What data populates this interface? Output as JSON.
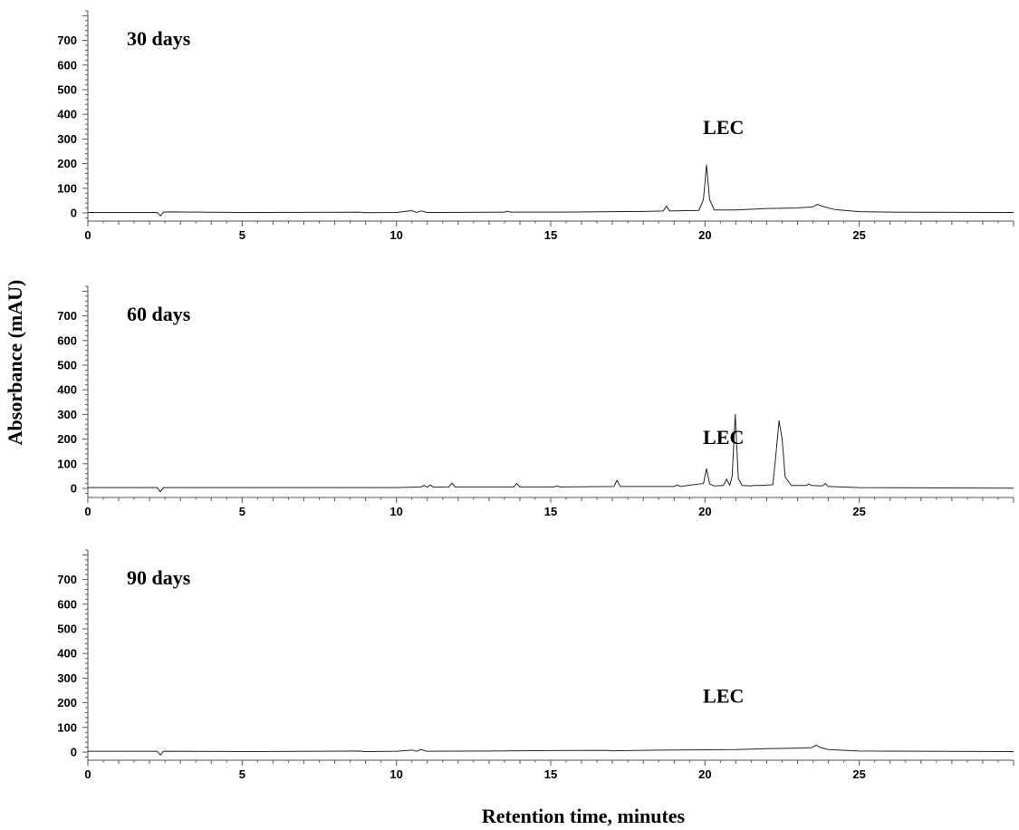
{
  "chart_data": {
    "type": "line",
    "ylabel": "Absorbance (mAU)",
    "xlabel": "Retention time, minutes",
    "xlim": [
      0,
      30
    ],
    "ylim": [
      -30,
      820
    ],
    "x_ticks": [
      0,
      5,
      10,
      15,
      20,
      25
    ],
    "y_ticks": [
      0,
      100,
      200,
      300,
      400,
      500,
      600,
      700
    ],
    "grid": false,
    "panels": [
      {
        "label": "30 days",
        "peak_label": "LEC",
        "peak_label_pos": [
          20.6,
          320
        ],
        "trace": [
          [
            0,
            2
          ],
          [
            2.25,
            2
          ],
          [
            2.35,
            -12
          ],
          [
            2.45,
            3
          ],
          [
            2.7,
            4
          ],
          [
            5,
            2
          ],
          [
            8.8,
            3
          ],
          [
            9,
            1
          ],
          [
            10,
            2
          ],
          [
            10.5,
            9
          ],
          [
            10.65,
            2
          ],
          [
            10.8,
            8
          ],
          [
            11,
            2
          ],
          [
            13.5,
            3
          ],
          [
            13.6,
            7
          ],
          [
            13.7,
            3
          ],
          [
            15,
            3
          ],
          [
            17,
            5
          ],
          [
            18,
            6
          ],
          [
            18.65,
            8
          ],
          [
            18.75,
            28
          ],
          [
            18.85,
            8
          ],
          [
            19.8,
            10
          ],
          [
            19.95,
            55
          ],
          [
            20.05,
            195
          ],
          [
            20.15,
            55
          ],
          [
            20.3,
            12
          ],
          [
            21,
            12
          ],
          [
            22,
            18
          ],
          [
            23,
            20
          ],
          [
            23.5,
            25
          ],
          [
            23.65,
            35
          ],
          [
            23.8,
            27
          ],
          [
            24.2,
            14
          ],
          [
            25,
            5
          ],
          [
            26,
            3
          ],
          [
            30,
            2
          ]
        ]
      },
      {
        "label": "60 days",
        "peak_label": "LEC",
        "peak_label_pos": [
          20.6,
          180
        ],
        "trace": [
          [
            0,
            3
          ],
          [
            2.25,
            3
          ],
          [
            2.35,
            -14
          ],
          [
            2.45,
            3
          ],
          [
            5,
            3
          ],
          [
            10,
            3
          ],
          [
            10.8,
            6
          ],
          [
            10.9,
            12
          ],
          [
            11,
            5
          ],
          [
            11.1,
            14
          ],
          [
            11.2,
            5
          ],
          [
            11.7,
            6
          ],
          [
            11.8,
            22
          ],
          [
            11.9,
            6
          ],
          [
            13.8,
            6
          ],
          [
            13.9,
            20
          ],
          [
            14,
            6
          ],
          [
            15.1,
            6
          ],
          [
            15.2,
            10
          ],
          [
            15.3,
            6
          ],
          [
            17.05,
            8
          ],
          [
            17.15,
            33
          ],
          [
            17.25,
            8
          ],
          [
            19,
            8
          ],
          [
            19.1,
            14
          ],
          [
            19.2,
            8
          ],
          [
            19.95,
            20
          ],
          [
            20.05,
            80
          ],
          [
            20.15,
            18
          ],
          [
            20.3,
            10
          ],
          [
            20.6,
            12
          ],
          [
            20.7,
            38
          ],
          [
            20.8,
            12
          ],
          [
            20.88,
            50
          ],
          [
            20.98,
            300
          ],
          [
            21.08,
            40
          ],
          [
            21.2,
            12
          ],
          [
            21.5,
            10
          ],
          [
            21.6,
            12
          ],
          [
            21.8,
            12
          ],
          [
            22.2,
            15
          ],
          [
            22.3,
            140
          ],
          [
            22.4,
            275
          ],
          [
            22.5,
            200
          ],
          [
            22.6,
            45
          ],
          [
            22.8,
            12
          ],
          [
            23.3,
            12
          ],
          [
            23.35,
            18
          ],
          [
            23.45,
            12
          ],
          [
            23.8,
            10
          ],
          [
            23.9,
            20
          ],
          [
            24,
            8
          ],
          [
            25,
            3
          ],
          [
            30,
            1
          ]
        ]
      },
      {
        "label": "90 days",
        "peak_label": "LEC",
        "peak_label_pos": [
          20.6,
          200
        ],
        "trace": [
          [
            0,
            3
          ],
          [
            2.25,
            3
          ],
          [
            2.35,
            -12
          ],
          [
            2.45,
            3
          ],
          [
            5,
            2
          ],
          [
            8.8,
            4
          ],
          [
            9,
            2
          ],
          [
            10,
            3
          ],
          [
            10.5,
            8
          ],
          [
            10.65,
            3
          ],
          [
            10.8,
            10
          ],
          [
            11,
            3
          ],
          [
            13,
            4
          ],
          [
            15,
            6
          ],
          [
            16.8,
            7
          ],
          [
            17,
            5
          ],
          [
            18.5,
            8
          ],
          [
            20,
            9
          ],
          [
            21,
            10
          ],
          [
            22,
            14
          ],
          [
            23,
            16
          ],
          [
            23.45,
            18
          ],
          [
            23.6,
            28
          ],
          [
            23.75,
            18
          ],
          [
            24,
            10
          ],
          [
            25,
            4
          ],
          [
            30,
            2
          ]
        ]
      }
    ]
  }
}
